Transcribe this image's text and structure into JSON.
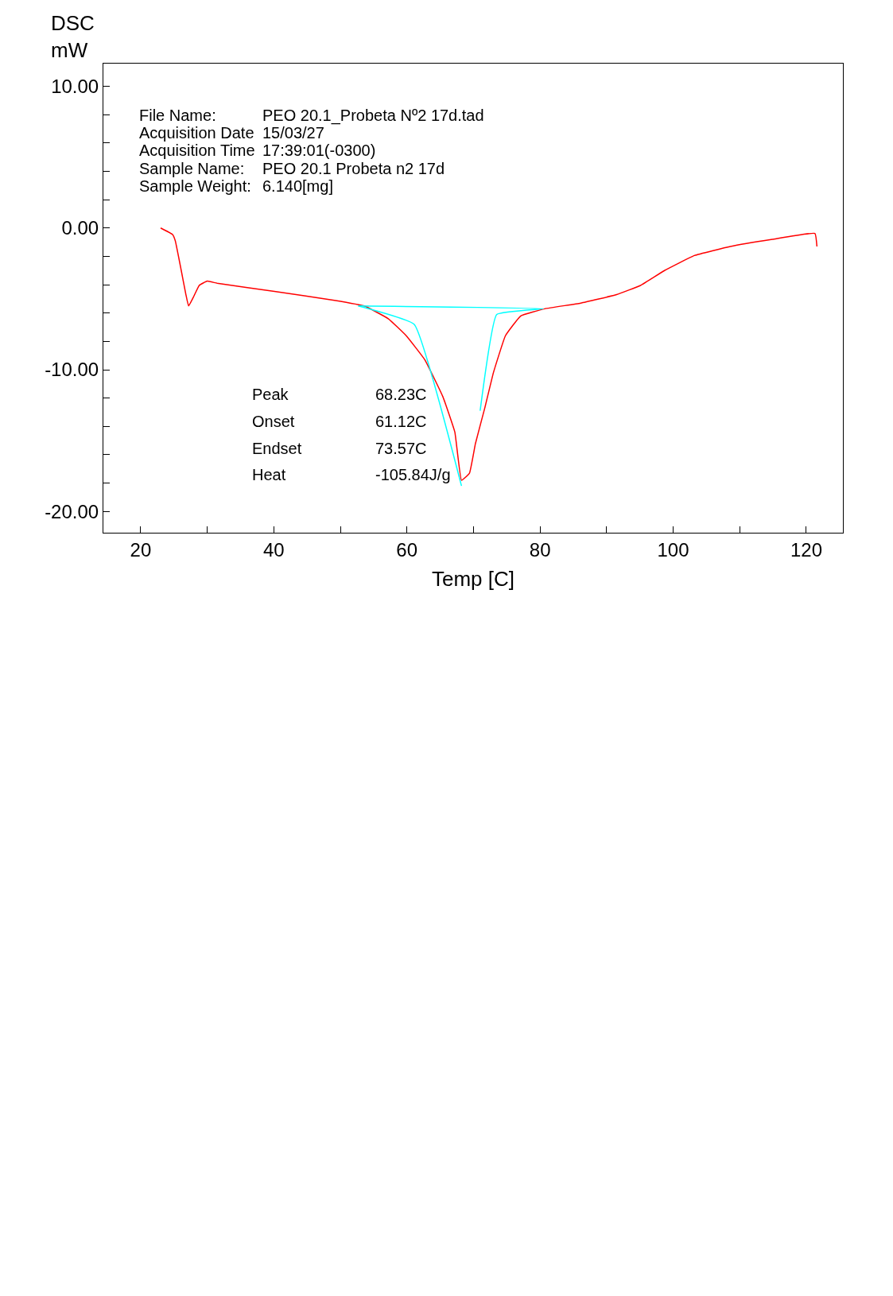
{
  "chart_data": {
    "type": "line",
    "xlabel": "Temp [C]",
    "ylabel": "DSC\nmW",
    "xlim": [
      14.4,
      125.5
    ],
    "ylim": [
      -21.5,
      11.6
    ],
    "xticks": [
      20,
      {
        "value": 30,
        "label": null
      },
      40,
      {
        "value": 50,
        "label": null
      },
      60,
      {
        "value": 70,
        "label": null
      },
      80,
      {
        "value": 90,
        "label": null
      },
      100,
      {
        "value": 110,
        "label": null
      },
      120
    ],
    "yticks": [
      {
        "value": -20,
        "label": "-20.00"
      },
      {
        "value": -18,
        "label": null
      },
      {
        "value": -16,
        "label": null
      },
      {
        "value": -14,
        "label": null
      },
      {
        "value": -12,
        "label": null
      },
      {
        "value": -10,
        "label": "-10.00"
      },
      {
        "value": -8,
        "label": null
      },
      {
        "value": -6,
        "label": null
      },
      {
        "value": -4,
        "label": null
      },
      {
        "value": -2,
        "label": null
      },
      {
        "value": 0,
        "label": "0.00"
      },
      {
        "value": 2,
        "label": null
      },
      {
        "value": 4,
        "label": null
      },
      {
        "value": 6,
        "label": null
      },
      {
        "value": 8,
        "label": null
      },
      {
        "value": 10,
        "label": "10.00"
      }
    ],
    "marker": "none",
    "line_style": "solid",
    "series": [
      {
        "color": "#ff0000",
        "x": [
          23.0,
          24.8,
          25.2,
          26.1,
          26.8,
          27.2,
          27.9,
          28.8,
          30.0,
          31.5,
          40.1,
          49.1,
          53.6,
          57.2,
          59.9,
          62.7,
          65.4,
          67.2,
          68.2,
          69.4,
          70.3,
          71.7,
          73.0,
          74.8,
          77.1,
          80.7,
          86.1,
          91.5,
          95.1,
          98.7,
          103.2,
          108.6,
          114.9,
          121.3,
          121.6
        ],
        "values": [
          0.0,
          -0.46,
          -0.9,
          -3.0,
          -4.7,
          -5.5,
          -4.9,
          -4.05,
          -3.75,
          -3.9,
          -4.47,
          -5.1,
          -5.5,
          -6.4,
          -7.6,
          -9.3,
          -11.9,
          -14.4,
          -17.8,
          -17.3,
          -15.2,
          -12.7,
          -10.2,
          -7.6,
          -6.2,
          -5.7,
          -5.3,
          -4.7,
          -4.05,
          -3.0,
          -1.94,
          -1.3,
          -0.8,
          -0.38,
          -1.3
        ]
      },
      {
        "color": "#00ffff",
        "x": [
          52.7,
          80.5,
          73.5,
          71.0,
          null,
          52.7,
          61.1,
          68.2
        ],
        "values": [
          -5.5,
          -5.7,
          -6.1,
          -12.9,
          null,
          -5.5,
          -6.8,
          -18.2
        ]
      }
    ],
    "annotations": [
      "File Name:",
      "Acquisition Date",
      "Acquisition Time",
      "Sample Name:",
      "Sample Weight:",
      "PEO 20.1_Probeta Nº2 17d.tad",
      "15/03/27",
      "17:39:01(-0300)",
      "PEO 20.1 Probeta n2 17d",
      "6.140[mg]",
      "Peak",
      "Onset",
      "Endset",
      "Heat",
      "68.23C",
      "61.12C",
      "73.57C",
      "-105.84J/g"
    ]
  }
}
